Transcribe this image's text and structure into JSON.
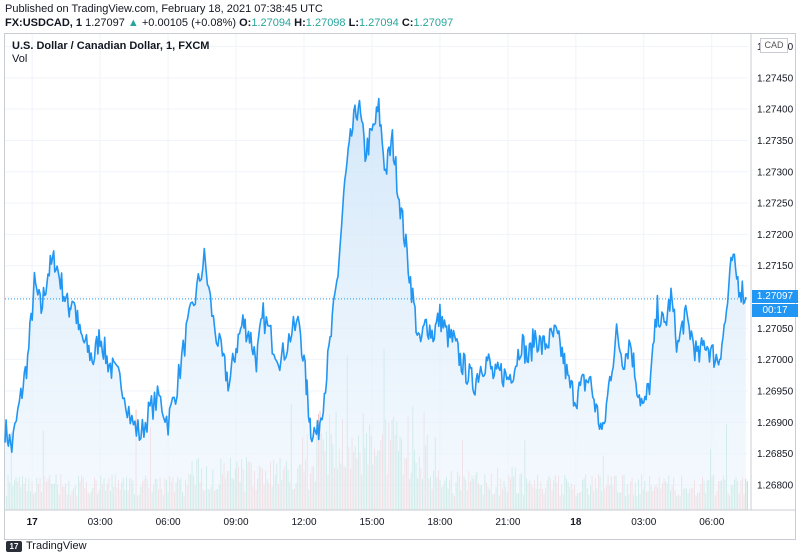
{
  "header": {
    "published": "Published on TradingView.com, February 18, 2021 07:38:45 UTC",
    "symbol": "FX:USDCAD, 1",
    "last": "1.27097",
    "arrow": "▲",
    "change": "+0.00105 (+0.08%)",
    "o_label": "O:",
    "o_val": "1.27094",
    "h_label": "H:",
    "h_val": "1.27098",
    "l_label": "L:",
    "l_val": "1.27094",
    "c_label": "C:",
    "c_val": "1.27097"
  },
  "pane": {
    "title": "U.S. Dollar / Canadian Dollar, 1, FXCM",
    "vol_label": "Vol",
    "currency": "CAD",
    "price_tag": "1.27097",
    "time_tag": "00:17"
  },
  "footer": {
    "brand": "TradingView",
    "logo_icon": "tradingview-logo-icon"
  },
  "colors": {
    "line": "#2196f3",
    "fill_top": "#d6e9fa",
    "vol_up": "#7fcfb4",
    "vol_down": "#f3a6a4",
    "up_text": "#26a69a"
  },
  "chart_data": {
    "type": "area",
    "title": "U.S. Dollar / Canadian Dollar, 1, FXCM",
    "symbol": "FX:USDCAD",
    "interval": "1 minute",
    "ylim": [
      1.2676,
      1.2752
    ],
    "y_ticks": [
      "1.27500",
      "1.27450",
      "1.27400",
      "1.27350",
      "1.27300",
      "1.27250",
      "1.27200",
      "1.27150",
      "1.27100",
      "1.27050",
      "1.27000",
      "1.26950",
      "1.26900",
      "1.26850",
      "1.26800"
    ],
    "x_ticks": [
      "17",
      "03:00",
      "06:00",
      "09:00",
      "12:00",
      "15:00",
      "18:00",
      "21:00",
      "18",
      "03:00",
      "06:00"
    ],
    "x_tick_hours": [
      0,
      3,
      6,
      9,
      12,
      15,
      18,
      21,
      24,
      27,
      30
    ],
    "x_range_hours": [
      -1.2,
      31.6
    ],
    "last_price": 1.27097,
    "series": [
      {
        "x": [
          -1.2,
          -0.9,
          -0.5,
          -0.2,
          0.1,
          0.4,
          0.7,
          1.0,
          1.3,
          1.6,
          1.8,
          2.1,
          2.4,
          2.7,
          3.0,
          3.3,
          3.6,
          4.0,
          4.4,
          4.8,
          5.2,
          5.6,
          6.0,
          6.4,
          6.8,
          7.2,
          7.6,
          8.0,
          8.4,
          8.7,
          9.0,
          9.3,
          9.6,
          9.9,
          10.2,
          10.6,
          11.0,
          11.4,
          11.8,
          12.1,
          12.3,
          12.6,
          12.9,
          13.2,
          13.5,
          13.8,
          14.1,
          14.4,
          14.7,
          15.0,
          15.3,
          15.6,
          15.9,
          16.2,
          16.5,
          16.8,
          17.1,
          17.4,
          17.7,
          18.0,
          18.3,
          18.6,
          18.9,
          19.2,
          19.5,
          19.8,
          20.1,
          20.4,
          20.7,
          21.0,
          21.3,
          21.6,
          21.9,
          22.2,
          22.5,
          22.8,
          23.1,
          23.4,
          23.7,
          24.0,
          24.3,
          24.6,
          24.9,
          25.2,
          25.5,
          25.8,
          26.1,
          26.4,
          26.7,
          27.0,
          27.3,
          27.6,
          27.9,
          28.2,
          28.5,
          28.8,
          29.1,
          29.4,
          29.7,
          30.0,
          30.3,
          30.6,
          30.9,
          31.2,
          31.5
        ],
        "y": [
          1.2689,
          1.2686,
          1.2694,
          1.27,
          1.2712,
          1.2708,
          1.2714,
          1.2716,
          1.2712,
          1.2708,
          1.271,
          1.2704,
          1.2702,
          1.27,
          1.2704,
          1.27,
          1.2698,
          1.2696,
          1.269,
          1.2688,
          1.2692,
          1.2694,
          1.269,
          1.2696,
          1.2704,
          1.271,
          1.2716,
          1.2706,
          1.27,
          1.2696,
          1.2702,
          1.2706,
          1.2704,
          1.27,
          1.2707,
          1.2703,
          1.27,
          1.2704,
          1.2706,
          1.2696,
          1.2689,
          1.2688,
          1.2695,
          1.2704,
          1.2714,
          1.2728,
          1.2736,
          1.2741,
          1.2733,
          1.2736,
          1.274,
          1.273,
          1.2735,
          1.2726,
          1.2718,
          1.271,
          1.2702,
          1.2706,
          1.2704,
          1.2707,
          1.2704,
          1.2703,
          1.27,
          1.2698,
          1.2696,
          1.2699,
          1.27,
          1.2697,
          1.2698,
          1.2697,
          1.2699,
          1.2703,
          1.27,
          1.2704,
          1.2702,
          1.2703,
          1.2704,
          1.2701,
          1.2696,
          1.2694,
          1.2696,
          1.2697,
          1.2692,
          1.2688,
          1.2697,
          1.2704,
          1.27,
          1.2703,
          1.2696,
          1.2692,
          1.2697,
          1.2708,
          1.2705,
          1.271,
          1.2702,
          1.2707,
          1.2704,
          1.27,
          1.2703,
          1.2701,
          1.27,
          1.2706,
          1.2716,
          1.2712,
          1.271
        ]
      }
    ]
  }
}
